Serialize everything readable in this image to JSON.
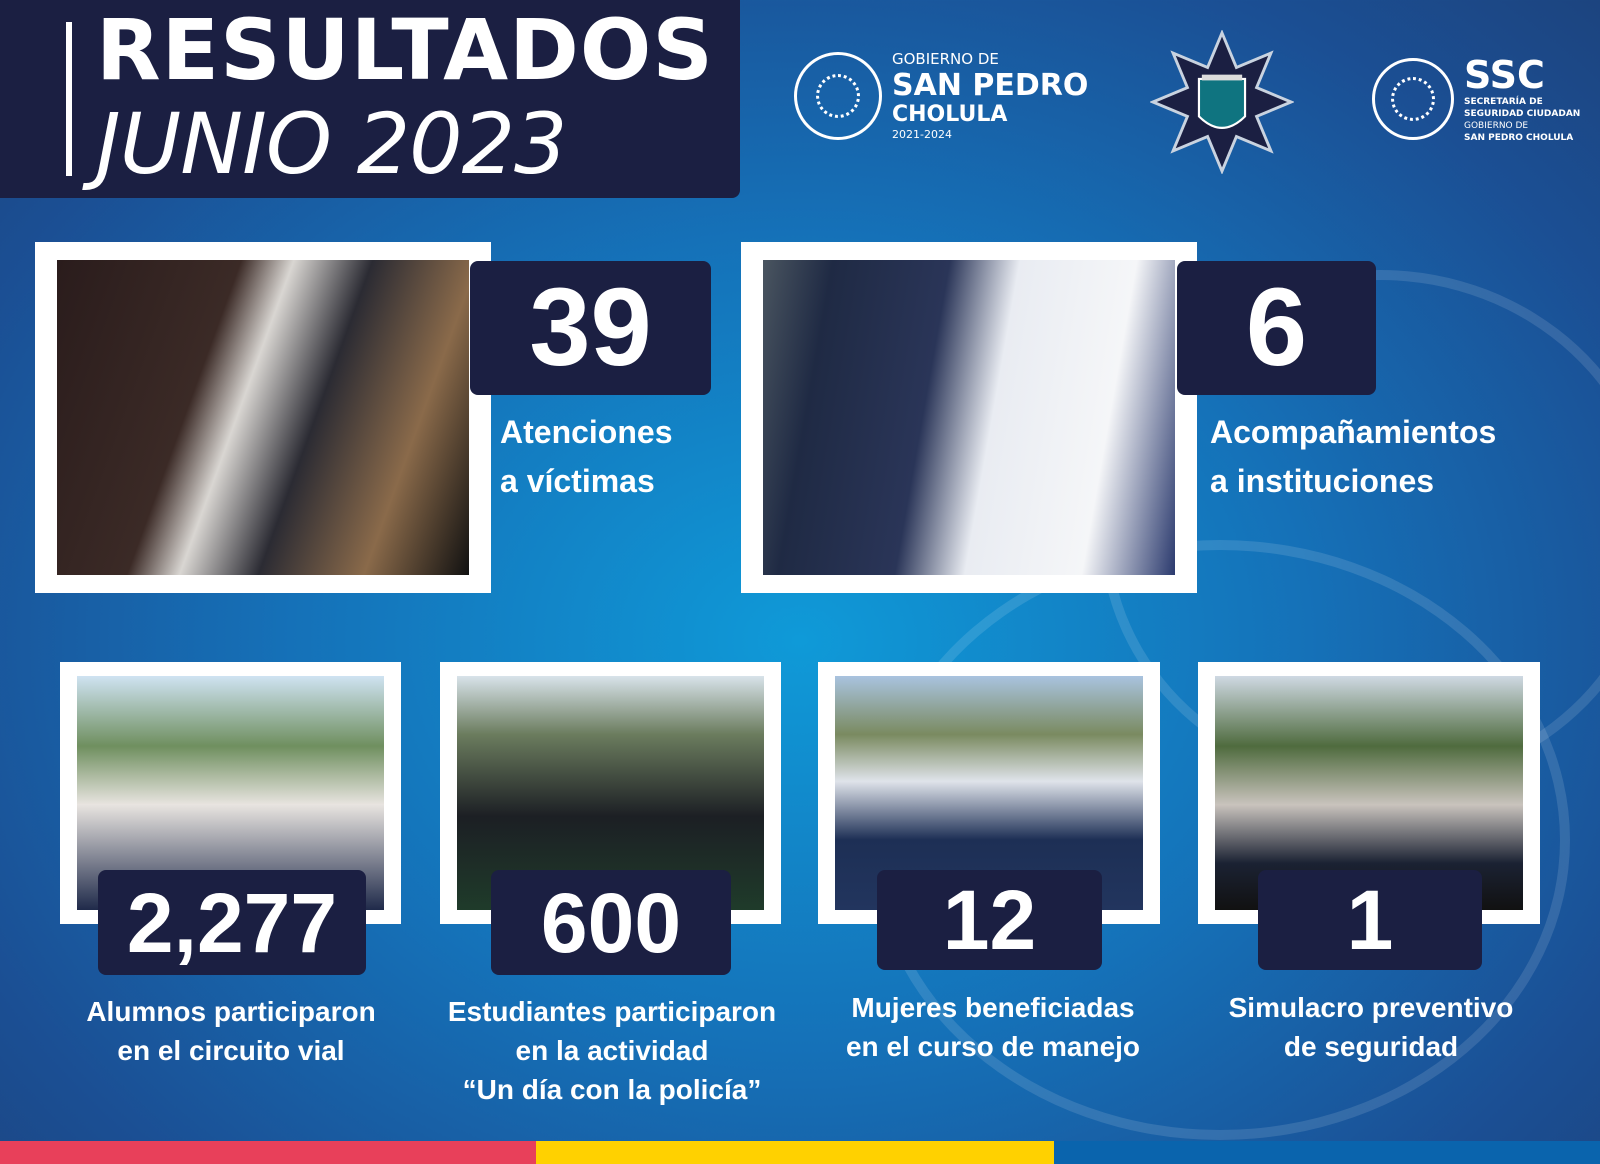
{
  "header": {
    "title_line1": "RESULTADOS",
    "title_month": "JUNIO",
    "title_year": "2023"
  },
  "logos": {
    "gobierno": {
      "line1": "GOBIERNO DE",
      "line2": "SAN PEDRO",
      "line3": "CHOLULA",
      "years": "2021-2024"
    },
    "ssc": {
      "acronym": "SSC",
      "line1": "SECRETARÍA DE",
      "line2": "SEGURIDAD CIUDADAN",
      "line3": "GOBIERNO DE",
      "line4": "SAN PEDRO CHOLULA"
    }
  },
  "stats": [
    {
      "value": "39",
      "caption1": "Atenciones",
      "caption2": "a víctimas"
    },
    {
      "value": "6",
      "caption1": "Acompañamientos",
      "caption2": "a instituciones"
    },
    {
      "value": "2,277",
      "caption1": "Alumnos participaron",
      "caption2": "en el circuito vial"
    },
    {
      "value": "600",
      "caption1": "Estudiantes participaron",
      "caption2": "en la actividad",
      "caption3": "“Un día con la policía”"
    },
    {
      "value": "12",
      "caption1": "Mujeres beneficiadas",
      "caption2": "en el curso de manejo"
    },
    {
      "value": "1",
      "caption1": "Simulacro preventivo",
      "caption2": "de seguridad"
    }
  ],
  "footer_colors": [
    "#e8405a",
    "#ffd100",
    "#0a64ad"
  ]
}
